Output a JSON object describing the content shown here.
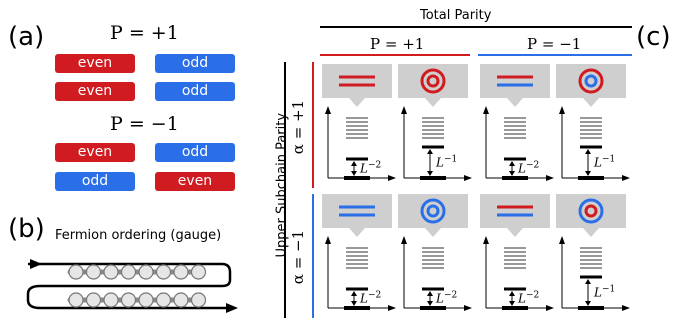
{
  "panel_a": {
    "label": "(a)",
    "groups": [
      {
        "title": "P = +1",
        "rows": [
          [
            "even",
            "odd"
          ],
          [
            "even",
            "odd"
          ]
        ],
        "colors": [
          [
            "red",
            "blue"
          ],
          [
            "red",
            "blue"
          ]
        ]
      },
      {
        "title": "P = −1",
        "rows": [
          [
            "even",
            "odd"
          ],
          [
            "odd",
            "even"
          ]
        ],
        "colors": [
          [
            "red",
            "blue"
          ],
          [
            "blue",
            "red"
          ]
        ]
      }
    ]
  },
  "panel_b": {
    "label": "(b)",
    "title": "Fermion ordering (gauge)"
  },
  "panel_c": {
    "label": "(c)",
    "top_header": "Total Parity",
    "col_headers": [
      "P = +1",
      "P = −1"
    ],
    "side_header": "Upper Subchain Parity",
    "row_headers": [
      "α = +1",
      "α = −1"
    ],
    "cells": [
      {
        "icon": "lines",
        "icon_colors": [
          "red",
          "red"
        ],
        "gap": "L−2"
      },
      {
        "icon": "rings",
        "icon_colors": [
          "red",
          "red"
        ],
        "gap": "L−1"
      },
      {
        "icon": "lines",
        "icon_colors": [
          "red",
          "blue"
        ],
        "gap": "L−2"
      },
      {
        "icon": "rings",
        "icon_colors": [
          "red",
          "blue"
        ],
        "gap": "L−1"
      },
      {
        "icon": "lines",
        "icon_colors": [
          "blue",
          "blue"
        ],
        "gap": "L−2"
      },
      {
        "icon": "rings",
        "icon_colors": [
          "blue",
          "blue"
        ],
        "gap": "L−2"
      },
      {
        "icon": "lines",
        "icon_colors": [
          "red",
          "blue"
        ],
        "gap": "L−2"
      },
      {
        "icon": "rings",
        "icon_colors": [
          "blue",
          "red"
        ],
        "gap": "L−1"
      }
    ]
  },
  "colors": {
    "red": "#d01c20",
    "blue": "#2a6fe8",
    "gray": "#cfcfcf",
    "levels": "#8a8a8a"
  }
}
